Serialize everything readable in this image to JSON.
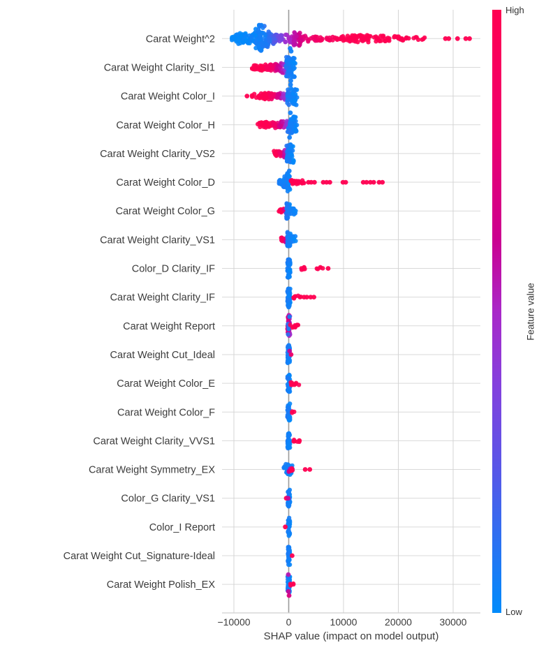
{
  "chart_data": {
    "type": "scatter",
    "subtype": "shap-beeswarm-summary",
    "title": "",
    "xlabel": "SHAP value (impact on model output)",
    "ylabel": "",
    "xlim": [
      -12150,
      34950
    ],
    "xticks": [
      -10000,
      0,
      10000,
      20000,
      30000
    ],
    "xtick_labels": [
      "−10000",
      "0",
      "10000",
      "20000",
      "30000"
    ],
    "grid": true,
    "zero_line_color": "#9b9b9b",
    "gridline_color": "#d9d9d9",
    "axis_line_color": "#cfcfcf",
    "text_color": "#3b3b3b",
    "colorbar": {
      "high_label": "High",
      "low_label": "Low",
      "title": "Feature value",
      "stops": [
        [
          0.0,
          "#008bfb"
        ],
        [
          0.23,
          "#5558e8"
        ],
        [
          0.38,
          "#8440dd"
        ],
        [
          0.5,
          "#a928c8"
        ],
        [
          0.62,
          "#cb0090"
        ],
        [
          0.8,
          "#ef006c"
        ],
        [
          1.0,
          "#ff0051"
        ]
      ]
    },
    "segment_format": [
      "x_min",
      "x_max",
      "n_points",
      "vertical_spread_px",
      "feature_value_start_0to1",
      "feature_value_end_0to1"
    ],
    "features": [
      {
        "name": "Carat Weight^2",
        "segments": [
          [
            -10400,
            -9600,
            10,
            4,
            0,
            0.02
          ],
          [
            -9600,
            -8700,
            16,
            8,
            0,
            0.02
          ],
          [
            -8700,
            -7900,
            12,
            6,
            0,
            0.03
          ],
          [
            -7900,
            -7000,
            14,
            8,
            0.01,
            0.03
          ],
          [
            -7000,
            -6100,
            16,
            9,
            0.02,
            0.04
          ],
          [
            -6100,
            -5400,
            22,
            14,
            0.03,
            0.06
          ],
          [
            -5400,
            -4400,
            40,
            20,
            0.04,
            0.08
          ],
          [
            -4400,
            -3600,
            24,
            12,
            0.06,
            0.12
          ],
          [
            -3600,
            -2700,
            18,
            8,
            0.1,
            0.2
          ],
          [
            -2700,
            -1800,
            14,
            6,
            0.2,
            0.3
          ],
          [
            -1800,
            -900,
            12,
            5,
            0.3,
            0.42
          ],
          [
            -900,
            800,
            14,
            6,
            0.45,
            0.55
          ],
          [
            800,
            2200,
            30,
            10,
            0.55,
            0.68
          ],
          [
            2200,
            3600,
            10,
            4,
            0.68,
            0.78
          ],
          [
            3600,
            5200,
            8,
            3,
            0.78,
            0.85
          ],
          [
            5200,
            7000,
            8,
            3,
            0.85,
            0.9
          ],
          [
            7000,
            8800,
            8,
            3,
            0.9,
            0.95
          ],
          [
            8800,
            10400,
            10,
            3.5,
            0.95,
            1
          ],
          [
            10400,
            12600,
            22,
            4.5,
            0.98,
            1
          ],
          [
            12600,
            15200,
            26,
            5,
            1,
            1
          ],
          [
            15200,
            17600,
            16,
            4,
            1,
            1
          ],
          [
            17600,
            20600,
            14,
            3.5,
            1,
            1
          ],
          [
            20600,
            23000,
            8,
            2.5,
            1,
            1
          ],
          [
            23000,
            25200,
            6,
            2,
            1,
            1
          ]
        ],
        "singles": [
          {
            "x": 28600,
            "v": 1
          },
          {
            "x": 29200,
            "v": 1
          },
          {
            "x": 30800,
            "v": 1
          },
          {
            "x": 32300,
            "v": 1
          },
          {
            "x": 33000,
            "v": 1
          }
        ]
      },
      {
        "name": "Carat Weight Clarity_SI1",
        "segments": [
          [
            -6700,
            -5400,
            12,
            3.5,
            1,
            1
          ],
          [
            -5400,
            -4200,
            20,
            4.5,
            0.98,
            1
          ],
          [
            -4200,
            -3200,
            16,
            5,
            0.95,
            0.85
          ],
          [
            -3200,
            -2200,
            14,
            5,
            0.85,
            0.7
          ],
          [
            -2200,
            -1200,
            14,
            6,
            0.68,
            0.55
          ],
          [
            -1200,
            -300,
            16,
            8,
            0.55,
            0.4
          ],
          [
            -500,
            1300,
            55,
            15,
            0.08,
            0.02
          ]
        ],
        "singles": [
          {
            "x": 350,
            "v": 0.05,
            "dy": 25
          },
          {
            "x": 450,
            "v": 0.05,
            "dy": -23
          },
          {
            "x": 250,
            "v": 0.05,
            "dy": -27
          }
        ]
      },
      {
        "name": "Carat Weight Color_I",
        "segments": [
          [
            -6700,
            -5200,
            12,
            3.5,
            1,
            1
          ],
          [
            -5200,
            -3600,
            20,
            4.5,
            1,
            0.95
          ],
          [
            -3600,
            -2200,
            16,
            4.5,
            0.92,
            0.78
          ],
          [
            -2200,
            -1000,
            12,
            5,
            0.7,
            0.5
          ],
          [
            -1000,
            -100,
            10,
            6,
            0.5,
            0.35
          ],
          [
            -300,
            1500,
            50,
            13,
            0.08,
            0.02
          ]
        ],
        "singles": [
          {
            "x": -7600,
            "v": 1
          },
          {
            "x": 300,
            "v": 0.05,
            "dy": 24
          },
          {
            "x": 380,
            "v": 0.05,
            "dy": -22
          }
        ]
      },
      {
        "name": "Carat Weight Color_H",
        "segments": [
          [
            -5700,
            -4400,
            12,
            3.5,
            1,
            1
          ],
          [
            -4400,
            -3000,
            20,
            4.5,
            1,
            0.95
          ],
          [
            -3000,
            -1800,
            14,
            4.5,
            0.9,
            0.75
          ],
          [
            -1800,
            -700,
            12,
            5,
            0.7,
            0.5
          ],
          [
            -700,
            100,
            10,
            6,
            0.5,
            0.35
          ],
          [
            -200,
            1500,
            48,
            12,
            0.08,
            0.02
          ]
        ],
        "singles": []
      },
      {
        "name": "Carat Weight Clarity_VS2",
        "segments": [
          [
            -2800,
            -1800,
            12,
            3.5,
            1,
            1
          ],
          [
            -1800,
            -900,
            14,
            4,
            0.9,
            0.7
          ],
          [
            -900,
            -200,
            12,
            6,
            0.6,
            0.45
          ],
          [
            -400,
            900,
            52,
            13,
            0.08,
            0.02
          ]
        ],
        "singles": [
          {
            "x": 100,
            "v": 0.05,
            "dy": 25
          },
          {
            "x": 150,
            "v": 0.05,
            "dy": -23
          }
        ]
      },
      {
        "name": "Carat Weight Color_D",
        "segments": [
          [
            -1800,
            -1000,
            10,
            4,
            0.06,
            0.03
          ],
          [
            -1000,
            -250,
            24,
            9,
            0.06,
            0.03
          ],
          [
            -350,
            250,
            24,
            13,
            0.07,
            0.02
          ],
          [
            250,
            1500,
            14,
            3,
            1,
            1
          ],
          [
            1500,
            2900,
            12,
            3,
            1,
            1
          ]
        ],
        "singles": [
          {
            "x": 3600,
            "v": 1
          },
          {
            "x": 4100,
            "v": 1
          },
          {
            "x": 4700,
            "v": 1
          },
          {
            "x": 6300,
            "v": 1
          },
          {
            "x": 6900,
            "v": 1
          },
          {
            "x": 7500,
            "v": 1
          },
          {
            "x": 9900,
            "v": 1
          },
          {
            "x": 10400,
            "v": 1
          },
          {
            "x": 13600,
            "v": 1
          },
          {
            "x": 14200,
            "v": 1
          },
          {
            "x": 14900,
            "v": 1
          },
          {
            "x": 15500,
            "v": 1
          },
          {
            "x": 16500,
            "v": 1
          },
          {
            "x": 17100,
            "v": 1
          }
        ]
      },
      {
        "name": "Carat Weight Color_G",
        "segments": [
          [
            -1800,
            -900,
            10,
            3,
            1,
            1
          ],
          [
            -900,
            -300,
            8,
            4,
            0.75,
            0.55
          ],
          [
            -450,
            200,
            30,
            11,
            0.1,
            0.02
          ],
          [
            200,
            1300,
            14,
            5,
            0.05,
            0.02
          ]
        ],
        "singles": []
      },
      {
        "name": "Carat Weight Clarity_VS1",
        "segments": [
          [
            -1500,
            -600,
            10,
            3.5,
            0.95,
            0.85
          ],
          [
            -600,
            -150,
            8,
            5,
            0.65,
            0.5
          ],
          [
            -250,
            300,
            30,
            11,
            0.08,
            0.02
          ],
          [
            300,
            1300,
            12,
            5,
            0.04,
            0.02
          ]
        ],
        "singles": []
      },
      {
        "name": "Color_D Clarity_IF",
        "segments": [
          [
            -250,
            280,
            40,
            13,
            0.07,
            0.02
          ],
          [
            2300,
            3100,
            6,
            2,
            1,
            1
          ],
          [
            4900,
            6600,
            5,
            2,
            1,
            1
          ]
        ],
        "singles": [
          {
            "x": 7200,
            "v": 1
          }
        ]
      },
      {
        "name": "Carat Weight Clarity_IF",
        "segments": [
          [
            -250,
            280,
            40,
            13,
            0.07,
            0.02
          ],
          [
            600,
            2300,
            8,
            2.5,
            1,
            1
          ]
        ],
        "singles": [
          {
            "x": 2800,
            "v": 1
          },
          {
            "x": 3300,
            "v": 1
          },
          {
            "x": 4000,
            "v": 1
          },
          {
            "x": 4600,
            "v": 1
          }
        ]
      },
      {
        "name": "Carat Weight Report",
        "segments": [
          [
            -230,
            230,
            40,
            16,
            0.75,
            0.45
          ],
          [
            -160,
            160,
            10,
            14,
            0.12,
            0.05
          ],
          [
            250,
            1900,
            9,
            2.5,
            1,
            1
          ]
        ],
        "singles": [
          {
            "x": 0,
            "v": 0.05,
            "dy": -27
          },
          {
            "x": 30,
            "v": 0.05,
            "dy": 28
          }
        ]
      },
      {
        "name": "Carat Weight Cut_Ideal",
        "segments": [
          [
            -230,
            230,
            36,
            12,
            0.07,
            0.02
          ]
        ],
        "singles": [
          {
            "x": 430,
            "v": 0.85
          },
          {
            "x": 160,
            "v": 0.6,
            "dy": -5
          }
        ]
      },
      {
        "name": "Carat Weight Color_E",
        "segments": [
          [
            -230,
            230,
            36,
            12,
            0.07,
            0.02
          ],
          [
            350,
            1900,
            8,
            2.5,
            1,
            1
          ]
        ],
        "singles": []
      },
      {
        "name": "Carat Weight Color_F",
        "segments": [
          [
            -230,
            230,
            36,
            12,
            0.07,
            0.02
          ],
          [
            600,
            1000,
            3,
            1.5,
            1,
            1
          ]
        ],
        "singles": []
      },
      {
        "name": "Carat Weight Clarity_VVS1",
        "segments": [
          [
            -230,
            230,
            36,
            12,
            0.07,
            0.02
          ],
          [
            700,
            1100,
            3,
            1.5,
            1,
            1
          ],
          [
            1500,
            2300,
            4,
            1.5,
            1,
            1
          ]
        ],
        "singles": []
      },
      {
        "name": "Carat Weight Symmetry_EX",
        "segments": [
          [
            -900,
            700,
            34,
            8,
            0.08,
            0.02
          ],
          [
            0,
            420,
            5,
            4,
            0.65,
            0.55
          ],
          [
            420,
            950,
            4,
            2,
            1,
            1
          ]
        ],
        "singles": [
          {
            "x": 3000,
            "v": 1
          },
          {
            "x": 3850,
            "v": 1
          }
        ]
      },
      {
        "name": "Color_G Clarity_VS1",
        "segments": [
          [
            -160,
            260,
            34,
            12,
            0.07,
            0.02
          ]
        ],
        "singles": [
          {
            "x": -450,
            "v": 1
          },
          {
            "x": -90,
            "v": 0.6
          }
        ]
      },
      {
        "name": "Color_I Report",
        "segments": [
          [
            -160,
            220,
            36,
            13,
            0.07,
            0.02
          ]
        ],
        "singles": [
          {
            "x": -620,
            "v": 1
          }
        ]
      },
      {
        "name": "Carat Weight Cut_Signature-Ideal",
        "segments": [
          [
            -160,
            220,
            36,
            13,
            0.07,
            0.02
          ]
        ],
        "singles": [
          {
            "x": 620,
            "v": 1
          }
        ]
      },
      {
        "name": "Carat Weight Polish_EX",
        "segments": [
          [
            -200,
            220,
            34,
            12,
            0.07,
            0.02
          ],
          [
            300,
            950,
            4,
            2,
            1,
            1
          ]
        ],
        "singles": [
          {
            "x": -80,
            "v": 0.55,
            "dy": -14
          },
          {
            "x": -60,
            "v": 0.6,
            "dy": 10
          },
          {
            "x": 70,
            "v": 0.7,
            "dy": 16
          }
        ]
      }
    ]
  }
}
